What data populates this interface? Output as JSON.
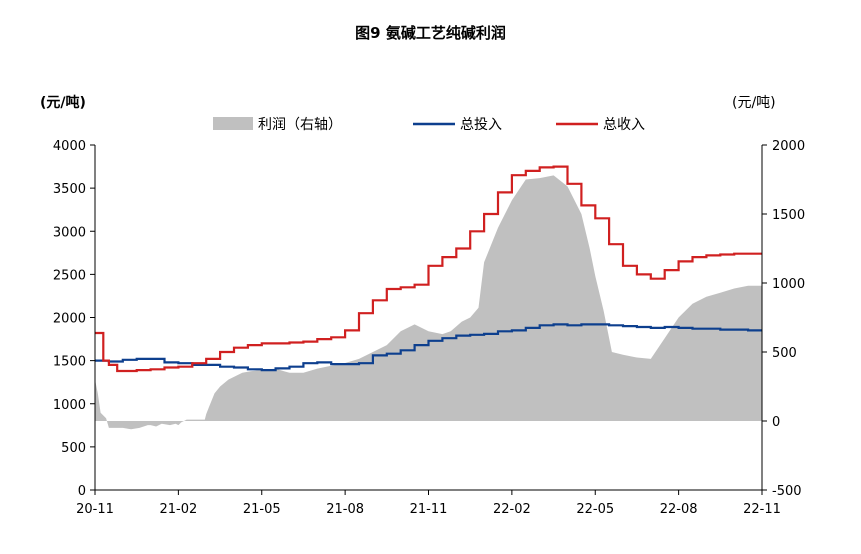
{
  "title": "图9 氨碱工艺纯碱利润",
  "chart_data": {
    "type": "line",
    "title": "图9 氨碱工艺纯碱利润",
    "ylabel_left": "(元/吨)",
    "ylabel_right": "(元/吨)",
    "ylim_left": [
      0,
      4000
    ],
    "ylim_right": [
      -500,
      2000
    ],
    "yticks_left": [
      0,
      500,
      1000,
      1500,
      2000,
      2500,
      3000,
      3500,
      4000
    ],
    "yticks_right": [
      -500,
      0,
      500,
      1000,
      1500,
      2000
    ],
    "xticks": [
      "20-11",
      "21-02",
      "21-05",
      "21-08",
      "21-11",
      "22-02",
      "22-05",
      "22-08",
      "22-11"
    ],
    "x_month_range": [
      0,
      24
    ],
    "legend": {
      "placement": "top",
      "entries": [
        "利润（右轴）",
        "总投入",
        "总收入"
      ]
    },
    "series": [
      {
        "name": "利润（右轴）",
        "kind": "area",
        "axis": "right",
        "color": "#c0c0c0",
        "points": [
          [
            0.0,
            300
          ],
          [
            0.1,
            200
          ],
          [
            0.2,
            60
          ],
          [
            0.4,
            20
          ],
          [
            0.5,
            -50
          ],
          [
            1.0,
            -50
          ],
          [
            1.3,
            -60
          ],
          [
            1.6,
            -50
          ],
          [
            1.9,
            -30
          ],
          [
            2.0,
            -30
          ],
          [
            2.2,
            -40
          ],
          [
            2.4,
            -20
          ],
          [
            2.7,
            -30
          ],
          [
            2.9,
            -20
          ],
          [
            3.0,
            -30
          ],
          [
            3.1,
            -10
          ],
          [
            3.3,
            10
          ],
          [
            3.6,
            10
          ],
          [
            3.9,
            10
          ],
          [
            3.95,
            10
          ],
          [
            4.0,
            50
          ],
          [
            4.1,
            100
          ],
          [
            4.3,
            200
          ],
          [
            4.5,
            250
          ],
          [
            4.8,
            300
          ],
          [
            5.1,
            330
          ],
          [
            5.3,
            350
          ],
          [
            5.6,
            360
          ],
          [
            6.0,
            370
          ],
          [
            6.5,
            380
          ],
          [
            6.8,
            360
          ],
          [
            7.0,
            350
          ],
          [
            7.5,
            350
          ],
          [
            8.0,
            380
          ],
          [
            8.5,
            400
          ],
          [
            9.0,
            420
          ],
          [
            9.5,
            450
          ],
          [
            10.0,
            500
          ],
          [
            10.5,
            550
          ],
          [
            11.0,
            650
          ],
          [
            11.5,
            700
          ],
          [
            12.0,
            650
          ],
          [
            12.5,
            630
          ],
          [
            12.8,
            650
          ],
          [
            13.2,
            720
          ],
          [
            13.5,
            750
          ],
          [
            13.8,
            820
          ],
          [
            14.0,
            1150
          ],
          [
            14.5,
            1400
          ],
          [
            15.0,
            1600
          ],
          [
            15.5,
            1750
          ],
          [
            16.0,
            1760
          ],
          [
            16.5,
            1780
          ],
          [
            17.0,
            1700
          ],
          [
            17.5,
            1500
          ],
          [
            17.8,
            1250
          ],
          [
            18.0,
            1050
          ],
          [
            18.3,
            800
          ],
          [
            18.6,
            500
          ],
          [
            19.0,
            480
          ],
          [
            19.5,
            460
          ],
          [
            20.0,
            450
          ],
          [
            20.5,
            600
          ],
          [
            21.0,
            750
          ],
          [
            21.5,
            850
          ],
          [
            22.0,
            900
          ],
          [
            22.5,
            930
          ],
          [
            23.0,
            960
          ],
          [
            23.5,
            980
          ],
          [
            24.0,
            980
          ]
        ]
      },
      {
        "name": "总投入",
        "kind": "line",
        "axis": "left",
        "color": "#0d3f8e",
        "points": [
          [
            0,
            1500
          ],
          [
            0.5,
            1490
          ],
          [
            1,
            1510
          ],
          [
            1.5,
            1520
          ],
          [
            2,
            1520
          ],
          [
            2.5,
            1480
          ],
          [
            3,
            1470
          ],
          [
            3.5,
            1450
          ],
          [
            4,
            1450
          ],
          [
            4.5,
            1430
          ],
          [
            5,
            1420
          ],
          [
            5.5,
            1400
          ],
          [
            6,
            1390
          ],
          [
            6.5,
            1410
          ],
          [
            7,
            1430
          ],
          [
            7.5,
            1470
          ],
          [
            8,
            1480
          ],
          [
            8.5,
            1460
          ],
          [
            9,
            1460
          ],
          [
            9.5,
            1470
          ],
          [
            10,
            1560
          ],
          [
            10.5,
            1580
          ],
          [
            11,
            1620
          ],
          [
            11.5,
            1680
          ],
          [
            12,
            1730
          ],
          [
            12.5,
            1760
          ],
          [
            13,
            1790
          ],
          [
            13.5,
            1800
          ],
          [
            14,
            1810
          ],
          [
            14.5,
            1840
          ],
          [
            15,
            1850
          ],
          [
            15.5,
            1880
          ],
          [
            16,
            1910
          ],
          [
            16.5,
            1920
          ],
          [
            17,
            1910
          ],
          [
            17.5,
            1920
          ],
          [
            18,
            1920
          ],
          [
            18.5,
            1910
          ],
          [
            19,
            1900
          ],
          [
            19.5,
            1890
          ],
          [
            20,
            1880
          ],
          [
            20.5,
            1890
          ],
          [
            21,
            1880
          ],
          [
            21.5,
            1870
          ],
          [
            22,
            1870
          ],
          [
            22.5,
            1860
          ],
          [
            23,
            1860
          ],
          [
            23.5,
            1850
          ],
          [
            24,
            1850
          ]
        ]
      },
      {
        "name": "总收入",
        "kind": "line",
        "axis": "left",
        "color": "#d02020",
        "points": [
          [
            0,
            1820
          ],
          [
            0.3,
            1500
          ],
          [
            0.5,
            1450
          ],
          [
            0.8,
            1380
          ],
          [
            1.2,
            1380
          ],
          [
            1.5,
            1390
          ],
          [
            2,
            1400
          ],
          [
            2.5,
            1420
          ],
          [
            3,
            1430
          ],
          [
            3.5,
            1470
          ],
          [
            4,
            1520
          ],
          [
            4.5,
            1600
          ],
          [
            5,
            1650
          ],
          [
            5.5,
            1680
          ],
          [
            6,
            1700
          ],
          [
            6.5,
            1700
          ],
          [
            7,
            1710
          ],
          [
            7.5,
            1720
          ],
          [
            8,
            1750
          ],
          [
            8.5,
            1770
          ],
          [
            9,
            1850
          ],
          [
            9.5,
            2050
          ],
          [
            10,
            2200
          ],
          [
            10.5,
            2330
          ],
          [
            11,
            2350
          ],
          [
            11.5,
            2380
          ],
          [
            12,
            2600
          ],
          [
            12.5,
            2700
          ],
          [
            13,
            2800
          ],
          [
            13.5,
            3000
          ],
          [
            14,
            3200
          ],
          [
            14.5,
            3450
          ],
          [
            15,
            3650
          ],
          [
            15.5,
            3700
          ],
          [
            16,
            3740
          ],
          [
            16.5,
            3750
          ],
          [
            17,
            3550
          ],
          [
            17.5,
            3300
          ],
          [
            18,
            3150
          ],
          [
            18.5,
            2850
          ],
          [
            19,
            2600
          ],
          [
            19.5,
            2500
          ],
          [
            20,
            2450
          ],
          [
            20.5,
            2550
          ],
          [
            21,
            2650
          ],
          [
            21.5,
            2700
          ],
          [
            22,
            2720
          ],
          [
            22.5,
            2730
          ],
          [
            23,
            2740
          ],
          [
            23.5,
            2740
          ],
          [
            24,
            2740
          ]
        ]
      }
    ]
  }
}
